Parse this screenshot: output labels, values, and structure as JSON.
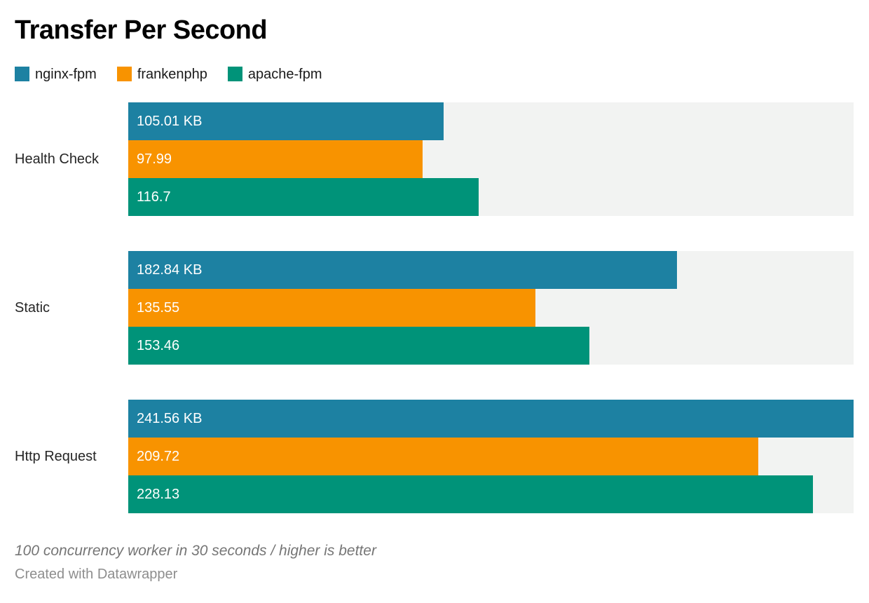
{
  "title": "Transfer Per Second",
  "legend": [
    {
      "label": "nginx-fpm",
      "color": "#1d81a2"
    },
    {
      "label": "frankenphp",
      "color": "#f89300"
    },
    {
      "label": "apache-fpm",
      "color": "#009379"
    }
  ],
  "chart_data": {
    "type": "bar",
    "orientation": "horizontal",
    "title": "Transfer Per Second",
    "categories": [
      "Health Check",
      "Static",
      "Http Request"
    ],
    "series": [
      {
        "name": "nginx-fpm",
        "color": "#1d81a2",
        "values": [
          105.01,
          182.84,
          241.56
        ],
        "labels": [
          "105.01 KB",
          "182.84 KB",
          "241.56 KB"
        ]
      },
      {
        "name": "frankenphp",
        "color": "#f89300",
        "values": [
          97.99,
          135.55,
          209.72
        ],
        "labels": [
          "97.99",
          "135.55",
          "209.72"
        ]
      },
      {
        "name": "apache-fpm",
        "color": "#009379",
        "values": [
          116.7,
          153.46,
          228.13
        ],
        "labels": [
          "116.7",
          "153.46",
          "228.13"
        ]
      }
    ],
    "xlim": [
      0,
      241.56
    ],
    "track_color": "#f2f3f2",
    "grid": false,
    "legend_position": "top",
    "value_label_position": "inside-left",
    "unit": "KB"
  },
  "footer": {
    "note": "100 concurrency worker in 30 seconds / higher is better",
    "attribution": "Created with Datawrapper"
  }
}
